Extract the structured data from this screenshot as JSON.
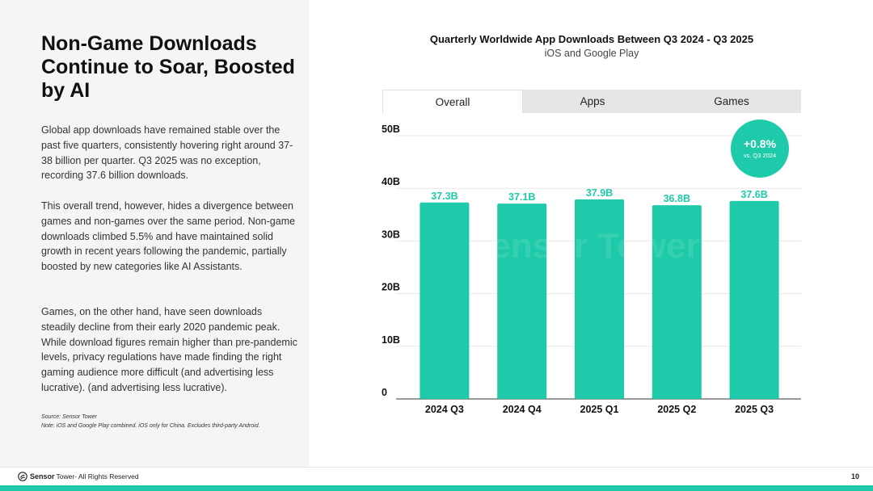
{
  "headline": "Non-Game Downloads Continue to Soar, Boosted by AI",
  "paragraphs": [
    "Global app downloads have remained stable over the past five quarters, consistently hovering right around 37-38 billion per quarter. Q3 2025 was no exception, recording 37.6 billion downloads.",
    "This overall trend, however, hides a divergence between games and non-games over the same period. Non-game downloads climbed 5.5% and have maintained solid growth in recent years following the pandemic, partially boosted by new categories like AI Assistants.",
    "Games, on the other hand, have seen downloads steadily decline from their early 2020 pandemic peak. While download figures remain higher than pre-pandemic levels, privacy regulations have made finding the right gaming audience more difficult (and advertising less lucrative). (and advertising less lucrative)."
  ],
  "source": {
    "line1": "Source: Sensor Tower",
    "line2": "Note: iOS and Google Play combined. iOS only for China. Excludes third-party Android."
  },
  "tabs": [
    "Overall",
    "Apps",
    "Games"
  ],
  "badge": {
    "value": "+0.8%",
    "caption": "vs. Q3 2024"
  },
  "watermark": "Sensor Tower",
  "footer": {
    "brand_bold": "Sensor",
    "brand_rest": "Tower",
    "rights": " - All Rights Reserved",
    "page": "10"
  },
  "colors": {
    "accent": "#1fcaaa",
    "label": "#1fcaaa",
    "grid": "#e8e8e8",
    "axis": "#333333"
  },
  "chart_data": {
    "type": "bar",
    "title": "Quarterly Worldwide App Downloads Between Q3 2024 - Q3 2025",
    "subtitle": "iOS and Google Play",
    "categories": [
      "2024 Q3",
      "2024 Q4",
      "2025 Q1",
      "2025 Q2",
      "2025 Q3"
    ],
    "values": [
      37.3,
      37.1,
      37.9,
      36.8,
      37.6
    ],
    "data_labels": [
      "37.3B",
      "37.1B",
      "37.9B",
      "36.8B",
      "37.6B"
    ],
    "yticks": [
      0,
      10,
      20,
      30,
      40,
      50
    ],
    "ytick_labels": [
      "0",
      "10B",
      "20B",
      "30B",
      "40B",
      "50B"
    ],
    "ylim": [
      0,
      50
    ],
    "xlabel": "",
    "ylabel": "",
    "grid": true
  }
}
